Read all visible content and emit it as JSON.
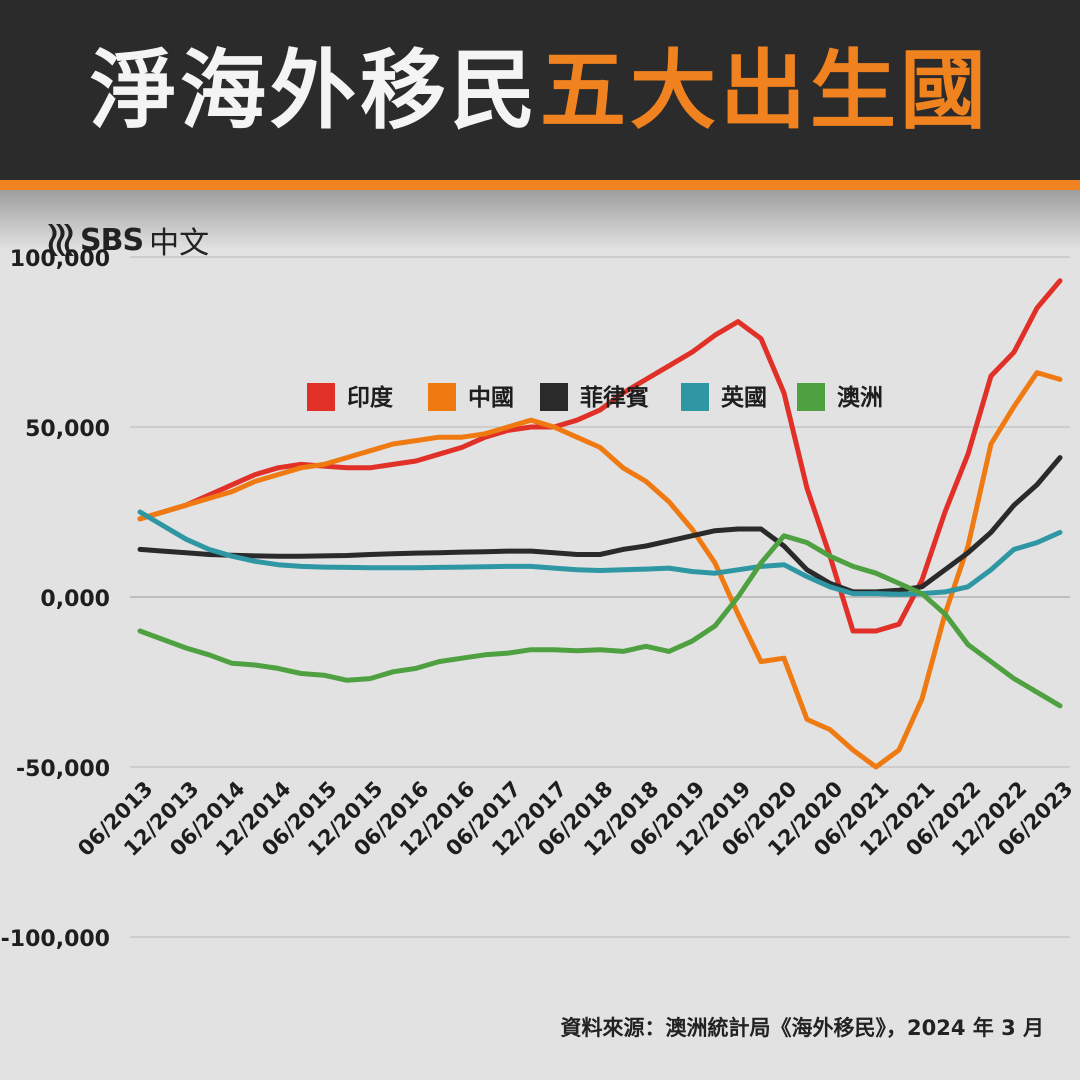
{
  "header": {
    "title_white": "淨海外移民",
    "title_orange": "五大出生國"
  },
  "logo": {
    "icon": "sbs-wave-icon",
    "text": "SBS",
    "sub": "中文"
  },
  "source_note": "資料來源：澳洲統計局《海外移民》，2024 年 3 月",
  "colors": {
    "header_bg": "#2b2b2b",
    "accent": "#f0821f",
    "background": "#e2e2e2"
  },
  "chart_data": {
    "type": "line",
    "title": "",
    "xlabel": "",
    "ylabel": "",
    "ylim": [
      -100000,
      100000
    ],
    "yticks": [
      100000,
      50000,
      0,
      -50000,
      -100000
    ],
    "ytick_labels": [
      "100,000",
      "50,000",
      "0,000",
      "-50,000",
      "-100,000"
    ],
    "grid": true,
    "legend_position": "top",
    "x": [
      "06/2013",
      "09/2013",
      "12/2013",
      "03/2014",
      "06/2014",
      "09/2014",
      "12/2014",
      "03/2015",
      "06/2015",
      "09/2015",
      "12/2015",
      "03/2016",
      "06/2016",
      "09/2016",
      "12/2016",
      "03/2017",
      "06/2017",
      "09/2017",
      "12/2017",
      "03/2018",
      "06/2018",
      "09/2018",
      "12/2018",
      "03/2019",
      "06/2019",
      "09/2019",
      "12/2019",
      "03/2020",
      "06/2020",
      "09/2020",
      "12/2020",
      "03/2021",
      "06/2021",
      "09/2021",
      "12/2021",
      "03/2022",
      "06/2022",
      "09/2022",
      "12/2022",
      "03/2023",
      "06/2023"
    ],
    "xtick_labels": [
      "06/2013",
      "12/2013",
      "06/2014",
      "12/2014",
      "06/2015",
      "12/2015",
      "06/2016",
      "12/2016",
      "06/2017",
      "12/2017",
      "06/2018",
      "12/2018",
      "06/2019",
      "12/2019",
      "06/2020",
      "12/2020",
      "06/2021",
      "12/2021",
      "06/2022",
      "12/2022",
      "06/2023"
    ],
    "series": [
      {
        "name": "印度",
        "color": "#e03028",
        "values": [
          23000,
          25000,
          27000,
          30000,
          33000,
          36000,
          38000,
          39000,
          38500,
          38000,
          38000,
          39000,
          40000,
          42000,
          44000,
          47000,
          49000,
          50000,
          50000,
          52000,
          55000,
          60000,
          64000,
          68000,
          72000,
          77000,
          81000,
          76000,
          60000,
          32000,
          12000,
          -10000,
          -10000,
          -8000,
          5000,
          25000,
          42000,
          65000,
          72000,
          85000,
          93000
        ]
      },
      {
        "name": "中國",
        "color": "#f07a12",
        "values": [
          23000,
          25000,
          27000,
          29000,
          31000,
          34000,
          36000,
          38000,
          39000,
          41000,
          43000,
          45000,
          46000,
          47000,
          47000,
          48000,
          50000,
          52000,
          50000,
          47000,
          44000,
          38000,
          34000,
          28000,
          20000,
          10000,
          -5000,
          -19000,
          -18000,
          -36000,
          -39000,
          -45000,
          -50000,
          -45000,
          -30000,
          -5000,
          15000,
          45000,
          56000,
          66000,
          64000
        ]
      },
      {
        "name": "菲律賓",
        "color": "#2a2a2a",
        "values": [
          14000,
          13500,
          13000,
          12500,
          12300,
          12100,
          12000,
          12000,
          12100,
          12200,
          12500,
          12700,
          12900,
          13000,
          13200,
          13300,
          13500,
          13500,
          13000,
          12500,
          12500,
          14000,
          15000,
          16500,
          18000,
          19500,
          20000,
          20000,
          15000,
          8000,
          4000,
          1500,
          1500,
          2000,
          3000,
          8000,
          13000,
          19000,
          27000,
          33000,
          41000
        ]
      },
      {
        "name": "英國",
        "color": "#2f96a4",
        "values": [
          25000,
          21000,
          17000,
          14000,
          12000,
          10500,
          9500,
          9000,
          8800,
          8700,
          8600,
          8600,
          8600,
          8700,
          8800,
          8900,
          9000,
          9000,
          8500,
          8000,
          7800,
          8000,
          8200,
          8500,
          7500,
          7000,
          8000,
          9000,
          9500,
          6000,
          3000,
          1000,
          1000,
          800,
          1000,
          1500,
          3000,
          8000,
          14000,
          16000,
          19000
        ]
      },
      {
        "name": "澳洲",
        "color": "#4ea040",
        "values": [
          -10000,
          -12500,
          -15000,
          -17000,
          -19500,
          -20000,
          -21000,
          -22500,
          -23000,
          -24500,
          -24000,
          -22000,
          -21000,
          -19000,
          -18000,
          -17000,
          -16500,
          -15500,
          -15500,
          -15800,
          -15500,
          -16000,
          -14500,
          -16000,
          -13000,
          -8500,
          0,
          10000,
          18000,
          16000,
          12000,
          9000,
          7000,
          4000,
          1000,
          -5000,
          -14000,
          -19000,
          -24000,
          -28000,
          -32000
        ]
      }
    ]
  }
}
